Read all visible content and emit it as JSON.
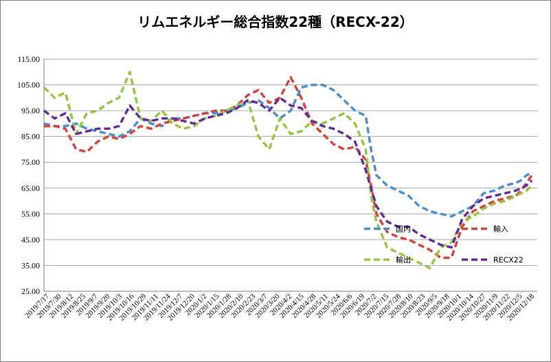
{
  "chart_data": {
    "type": "line",
    "title": "リムエネルギー総合指数22種（RECX-22）",
    "xlabel": "",
    "ylabel": "",
    "ylim": [
      25,
      115
    ],
    "y_ticks": [
      "25.00",
      "35.00",
      "45.00",
      "55.00",
      "65.00",
      "75.00",
      "85.00",
      "95.00",
      "105.00",
      "115.00"
    ],
    "x_ticks": [
      "2019/7/17",
      "2019/7/30",
      "2019/8/12",
      "2019/8/25",
      "2019/9/7",
      "2019/9/20",
      "2019/10/3",
      "2019/10/16",
      "2019/10/29",
      "2019/11/11",
      "2019/11/24",
      "2019/12/7",
      "2019/12/20",
      "2020/1/2",
      "2020/1/15",
      "2020/1/28",
      "2020/2/10",
      "2020/2/23",
      "2020/3/7",
      "2020/3/20",
      "2020/4/2",
      "2020/4/15",
      "2020/4/28",
      "2020/5/11",
      "2020/5/24",
      "2020/6/6",
      "2020/6/19",
      "2020/7/2",
      "2020/7/15",
      "2020/7/28",
      "2020/8/10",
      "2020/8/23",
      "2020/9/5",
      "2020/9/18",
      "2020/10/1",
      "2020/10/14",
      "2020/10/27",
      "2020/11/9",
      "2020/11/22",
      "2020/12/5",
      "2020/12/18"
    ],
    "x_index_range": [
      0,
      46
    ],
    "grid": true,
    "legend_position": "inside-lower-right",
    "series": [
      {
        "name": "国内",
        "color": "#4a8fd4",
        "points": [
          [
            0,
            90
          ],
          [
            1,
            89
          ],
          [
            2,
            89
          ],
          [
            3,
            90
          ],
          [
            4,
            88
          ],
          [
            5,
            87
          ],
          [
            6,
            86
          ],
          [
            7,
            85
          ],
          [
            8,
            87
          ],
          [
            9,
            92
          ],
          [
            10,
            90
          ],
          [
            11,
            89
          ],
          [
            12,
            92
          ],
          [
            13,
            92
          ],
          [
            14,
            93
          ],
          [
            15,
            94
          ],
          [
            16,
            94
          ],
          [
            17,
            95
          ],
          [
            18,
            96
          ],
          [
            19,
            98
          ],
          [
            20,
            99
          ],
          [
            21,
            96
          ],
          [
            22,
            92
          ],
          [
            23,
            95
          ],
          [
            24,
            104
          ],
          [
            25,
            105
          ],
          [
            26,
            105
          ],
          [
            27,
            103
          ],
          [
            28,
            99
          ],
          [
            29,
            95
          ],
          [
            30,
            93
          ],
          [
            30.5,
            80
          ],
          [
            31,
            70
          ],
          [
            32,
            66
          ],
          [
            33,
            64
          ],
          [
            34,
            62
          ],
          [
            35,
            58
          ],
          [
            36,
            56
          ],
          [
            37,
            55
          ],
          [
            38,
            54
          ],
          [
            39,
            56
          ],
          [
            40,
            58
          ],
          [
            41,
            63
          ],
          [
            42,
            64
          ],
          [
            43,
            66
          ],
          [
            44,
            67
          ],
          [
            44.5,
            68
          ],
          [
            45,
            70
          ],
          [
            45.5,
            71
          ]
        ]
      },
      {
        "name": "輸入",
        "color": "#d9433b",
        "points": [
          [
            0,
            89
          ],
          [
            1,
            89
          ],
          [
            2,
            88
          ],
          [
            3,
            80
          ],
          [
            4,
            79
          ],
          [
            5,
            83
          ],
          [
            6,
            85
          ],
          [
            7,
            84
          ],
          [
            8,
            86
          ],
          [
            9,
            89
          ],
          [
            10,
            88
          ],
          [
            11,
            90
          ],
          [
            12,
            91
          ],
          [
            13,
            92
          ],
          [
            14,
            93
          ],
          [
            15,
            94
          ],
          [
            16,
            95
          ],
          [
            17,
            95
          ],
          [
            18,
            97
          ],
          [
            19,
            101
          ],
          [
            20,
            103
          ],
          [
            21,
            98
          ],
          [
            22,
            100
          ],
          [
            23,
            108
          ],
          [
            24,
            100
          ],
          [
            25,
            90
          ],
          [
            26,
            86
          ],
          [
            27,
            82
          ],
          [
            28,
            80
          ],
          [
            29,
            81
          ],
          [
            30,
            76
          ],
          [
            30.5,
            66
          ],
          [
            31,
            55
          ],
          [
            32,
            48
          ],
          [
            33,
            46
          ],
          [
            34,
            45
          ],
          [
            35,
            43
          ],
          [
            36,
            41
          ],
          [
            37,
            38
          ],
          [
            38,
            38
          ],
          [
            39,
            50
          ],
          [
            40,
            56
          ],
          [
            41,
            58
          ],
          [
            42,
            60
          ],
          [
            43,
            61
          ],
          [
            44,
            62
          ],
          [
            44.5,
            64
          ],
          [
            45,
            67
          ],
          [
            45.5,
            70
          ]
        ]
      },
      {
        "name": "輸出",
        "color": "#92c83e",
        "points": [
          [
            0,
            104
          ],
          [
            1,
            100
          ],
          [
            2,
            102
          ],
          [
            3,
            86
          ],
          [
            4,
            94
          ],
          [
            5,
            95
          ],
          [
            6,
            98
          ],
          [
            7,
            100
          ],
          [
            8,
            110
          ],
          [
            9,
            92
          ],
          [
            10,
            91
          ],
          [
            11,
            95
          ],
          [
            12,
            90
          ],
          [
            13,
            88
          ],
          [
            14,
            89
          ],
          [
            15,
            92
          ],
          [
            16,
            93
          ],
          [
            17,
            95
          ],
          [
            18,
            97
          ],
          [
            19,
            99
          ],
          [
            20,
            85
          ],
          [
            21,
            80
          ],
          [
            22,
            92
          ],
          [
            23,
            86
          ],
          [
            24,
            87
          ],
          [
            25,
            91
          ],
          [
            26,
            90
          ],
          [
            27,
            92
          ],
          [
            28,
            94
          ],
          [
            29,
            90
          ],
          [
            30,
            80
          ],
          [
            30.5,
            62
          ],
          [
            31,
            52
          ],
          [
            32,
            42
          ],
          [
            33,
            40
          ],
          [
            34,
            38
          ],
          [
            35,
            36
          ],
          [
            36,
            34
          ],
          [
            37,
            42
          ],
          [
            38,
            44
          ],
          [
            39,
            52
          ],
          [
            40,
            54
          ],
          [
            41,
            57
          ],
          [
            42,
            59
          ],
          [
            43,
            60
          ],
          [
            44,
            62
          ],
          [
            44.5,
            63
          ],
          [
            45,
            64
          ],
          [
            45.5,
            66
          ]
        ]
      },
      {
        "name": "RECX22",
        "color": "#6a2a9f",
        "points": [
          [
            0,
            95
          ],
          [
            1,
            92
          ],
          [
            2,
            94
          ],
          [
            3,
            86
          ],
          [
            4,
            87
          ],
          [
            5,
            88
          ],
          [
            6,
            88
          ],
          [
            7,
            89
          ],
          [
            8,
            97
          ],
          [
            9,
            92
          ],
          [
            10,
            91
          ],
          [
            11,
            92
          ],
          [
            12,
            92
          ],
          [
            13,
            91
          ],
          [
            14,
            90
          ],
          [
            15,
            92
          ],
          [
            16,
            93
          ],
          [
            17,
            94
          ],
          [
            18,
            96
          ],
          [
            19,
            99
          ],
          [
            20,
            98
          ],
          [
            21,
            95
          ],
          [
            22,
            100
          ],
          [
            23,
            97
          ],
          [
            24,
            96
          ],
          [
            25,
            91
          ],
          [
            26,
            89
          ],
          [
            27,
            88
          ],
          [
            28,
            86
          ],
          [
            29,
            83
          ],
          [
            30,
            72
          ],
          [
            30.5,
            65
          ],
          [
            31,
            58
          ],
          [
            32,
            52
          ],
          [
            33,
            50
          ],
          [
            34,
            50
          ],
          [
            35,
            47
          ],
          [
            36,
            45
          ],
          [
            37,
            43
          ],
          [
            38,
            42
          ],
          [
            39,
            53
          ],
          [
            40,
            58
          ],
          [
            41,
            61
          ],
          [
            42,
            62
          ],
          [
            43,
            63
          ],
          [
            44,
            64
          ],
          [
            44.5,
            65
          ],
          [
            45,
            66
          ],
          [
            45.5,
            68
          ]
        ]
      }
    ]
  }
}
